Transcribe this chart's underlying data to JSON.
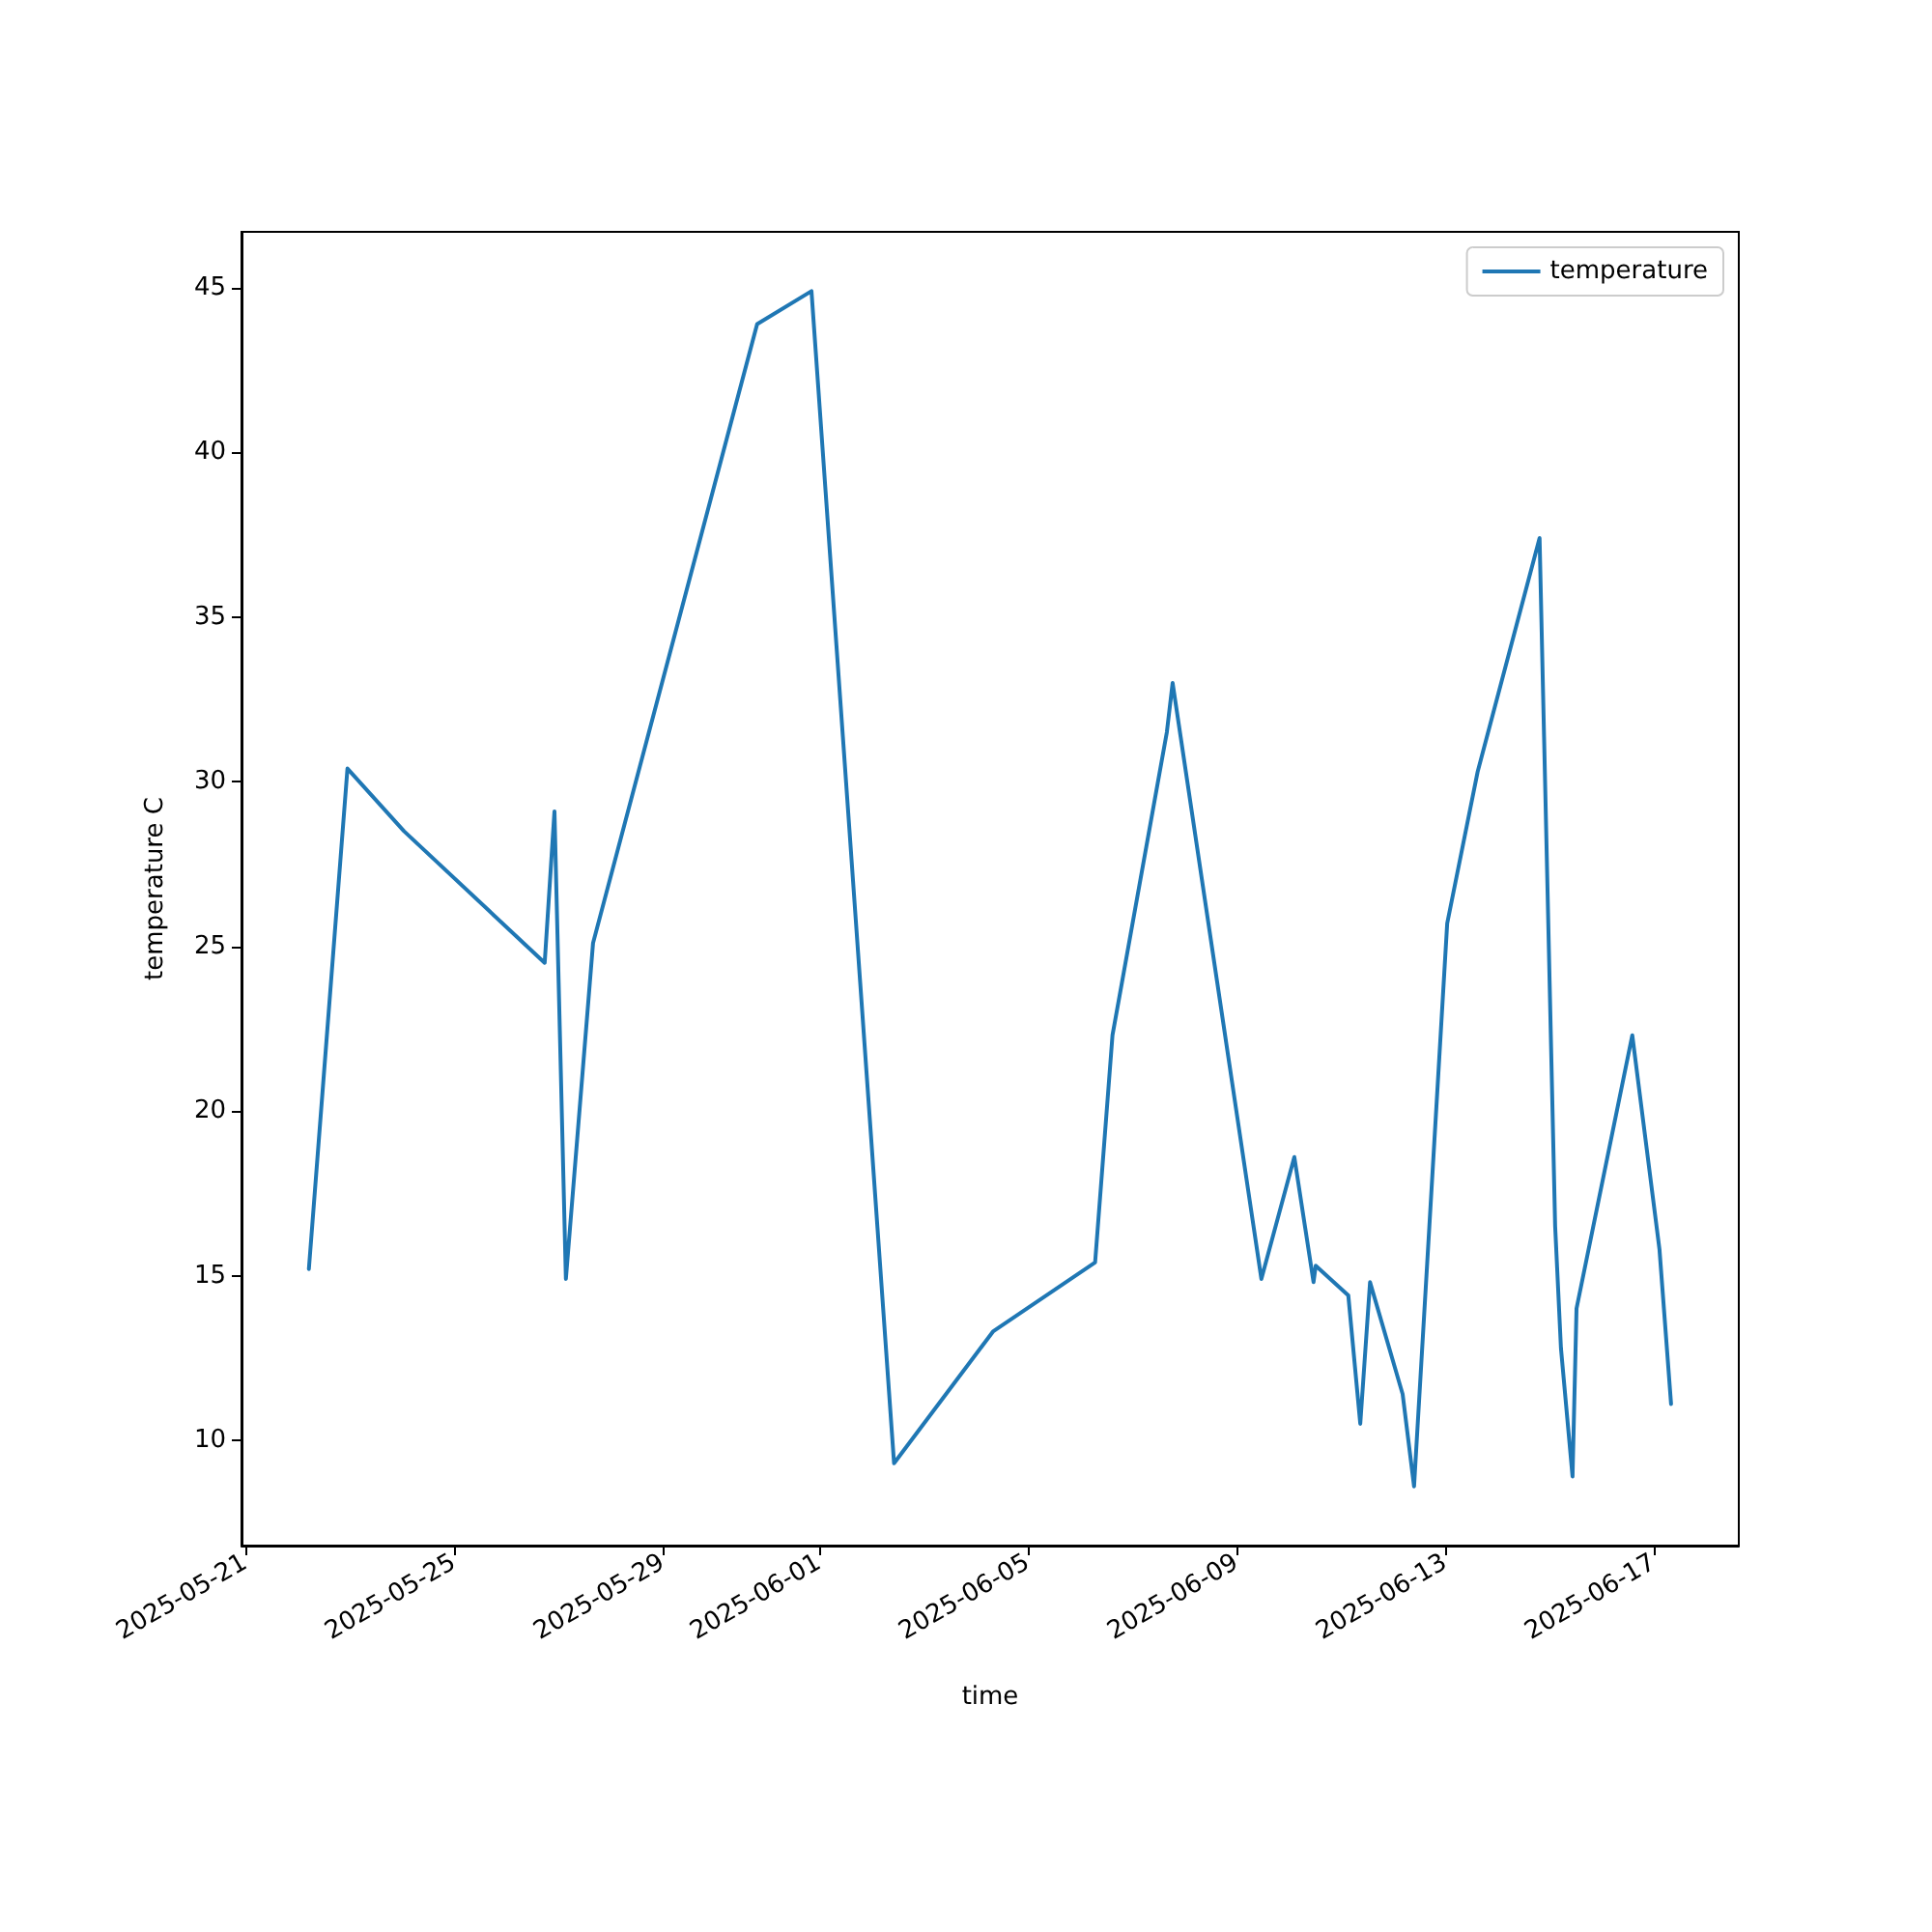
{
  "chart_data": {
    "type": "line",
    "xlabel": "time",
    "ylabel": "temperature C",
    "x": [
      "2025-05-22T05:15",
      "2025-05-22T23:00",
      "2025-05-24T01:00",
      "2025-05-26T17:45",
      "2025-05-26T22:15",
      "2025-05-27T03:30",
      "2025-05-27T16:00",
      "2025-05-30T19:30",
      "2025-05-31T20:30",
      "2025-06-02T10:30",
      "2025-06-04T08:00",
      "2025-06-06T07:00",
      "2025-06-06T15:00",
      "2025-06-07T16:00",
      "2025-06-07T18:40",
      "2025-06-09T11:30",
      "2025-06-10T02:40",
      "2025-06-10T11:30",
      "2025-06-10T12:30",
      "2025-06-11T03:30",
      "2025-06-11T09:00",
      "2025-06-11T13:30",
      "2025-06-12T04:30",
      "2025-06-12T09:45",
      "2025-06-13T01:00",
      "2025-06-13T15:00",
      "2025-06-14T19:30",
      "2025-06-15T02:40",
      "2025-06-15T05:20",
      "2025-06-15T10:40",
      "2025-06-15T12:30",
      "2025-06-16T14:10",
      "2025-06-17T02:40",
      "2025-06-17T08:00"
    ],
    "series": [
      {
        "name": "temperature",
        "color": "#1f77b4",
        "values": [
          15.2,
          30.4,
          28.5,
          24.5,
          29.1,
          14.9,
          25.1,
          43.9,
          44.9,
          9.3,
          13.3,
          15.4,
          22.3,
          31.5,
          33.0,
          14.9,
          18.6,
          14.8,
          15.3,
          14.4,
          10.5,
          14.8,
          11.4,
          8.6,
          25.7,
          30.3,
          37.4,
          16.5,
          12.8,
          8.9,
          14.0,
          22.3,
          15.8,
          11.1
        ]
      }
    ],
    "xlim": [
      "2025-05-20T22:15",
      "2025-06-18T15:10"
    ],
    "xticks": [
      "2025-05-21",
      "2025-05-25",
      "2025-05-29",
      "2025-06-01",
      "2025-06-05",
      "2025-06-09",
      "2025-06-13",
      "2025-06-17"
    ],
    "ylim": [
      6.8,
      46.7
    ],
    "yticks": [
      10,
      15,
      20,
      25,
      30,
      35,
      40,
      45
    ],
    "grid": false,
    "legend": "top right",
    "marker": "none",
    "line_style": "solid"
  }
}
